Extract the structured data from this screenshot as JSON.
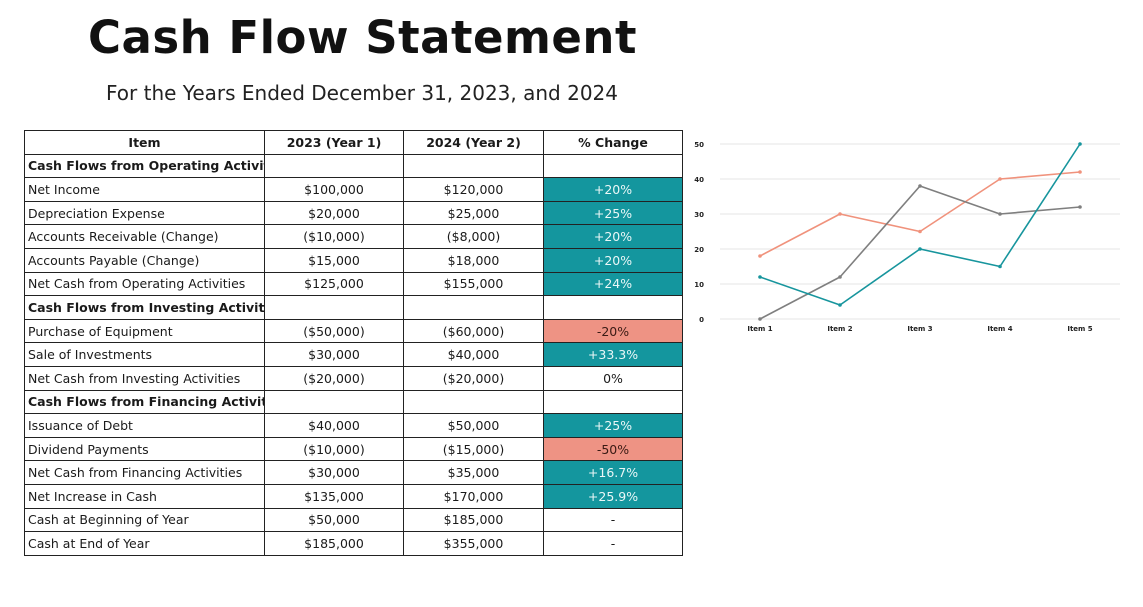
{
  "page": {
    "title": "Cash Flow Statement",
    "subtitle": "For the Years Ended December 31, 2023, and 2024"
  },
  "table": {
    "headers": [
      "Item",
      "2023 (Year 1)",
      "2024 (Year 2)",
      "% Change"
    ],
    "rows": [
      {
        "item": "Cash Flows from Operating Activities",
        "section": true,
        "y1": "",
        "y2": "",
        "change": "",
        "tone": "none"
      },
      {
        "item": "Net Income",
        "section": false,
        "y1": "$100,000",
        "y2": "$120,000",
        "change": "+20%",
        "tone": "pos"
      },
      {
        "item": "Depreciation Expense",
        "section": false,
        "y1": "$20,000",
        "y2": "$25,000",
        "change": "+25%",
        "tone": "pos"
      },
      {
        "item": "Accounts Receivable (Change)",
        "section": false,
        "y1": "($10,000)",
        "y2": "($8,000)",
        "change": "+20%",
        "tone": "pos"
      },
      {
        "item": "Accounts Payable (Change)",
        "section": false,
        "y1": "$15,000",
        "y2": "$18,000",
        "change": "+20%",
        "tone": "pos"
      },
      {
        "item": "Net Cash from Operating Activities",
        "section": false,
        "y1": "$125,000",
        "y2": "$155,000",
        "change": "+24%",
        "tone": "pos"
      },
      {
        "item": "Cash Flows from Investing Activities",
        "section": true,
        "y1": "",
        "y2": "",
        "change": "",
        "tone": "none"
      },
      {
        "item": "Purchase of Equipment",
        "section": false,
        "y1": "($50,000)",
        "y2": "($60,000)",
        "change": "-20%",
        "tone": "neg"
      },
      {
        "item": "Sale of Investments",
        "section": false,
        "y1": "$30,000",
        "y2": "$40,000",
        "change": "+33.3%",
        "tone": "pos"
      },
      {
        "item": "Net Cash from Investing Activities",
        "section": false,
        "y1": "($20,000)",
        "y2": "($20,000)",
        "change": "0%",
        "tone": "neu"
      },
      {
        "item": "Cash Flows from Financing Activities",
        "section": true,
        "y1": "",
        "y2": "",
        "change": "",
        "tone": "none"
      },
      {
        "item": "Issuance of Debt",
        "section": false,
        "y1": "$40,000",
        "y2": "$50,000",
        "change": "+25%",
        "tone": "pos"
      },
      {
        "item": "Dividend Payments",
        "section": false,
        "y1": "($10,000)",
        "y2": "($15,000)",
        "change": "-50%",
        "tone": "neg"
      },
      {
        "item": "Net Cash from Financing Activities",
        "section": false,
        "y1": "$30,000",
        "y2": "$35,000",
        "change": "+16.7%",
        "tone": "pos"
      },
      {
        "item": "Net Increase in Cash",
        "section": false,
        "y1": "$135,000",
        "y2": "$170,000",
        "change": "+25.9%",
        "tone": "pos"
      },
      {
        "item": "Cash at Beginning of Year",
        "section": false,
        "y1": "$50,000",
        "y2": "$185,000",
        "change": "-",
        "tone": "neu"
      },
      {
        "item": "Cash at End of Year",
        "section": false,
        "y1": "$185,000",
        "y2": "$355,000",
        "change": "-",
        "tone": "neu"
      }
    ]
  },
  "colors": {
    "positive": "#14969e",
    "negative": "#ee9384",
    "series": [
      "#f0927c",
      "#7f7f7f",
      "#17959d"
    ],
    "grid": "#e6e6e6"
  },
  "chart_data": {
    "type": "line",
    "categories": [
      "Item 1",
      "Item 2",
      "Item 3",
      "Item 4",
      "Item 5"
    ],
    "series": [
      {
        "values": [
          18,
          30,
          25,
          40,
          42
        ]
      },
      {
        "values": [
          0,
          12,
          38,
          30,
          32
        ]
      },
      {
        "values": [
          12,
          4,
          20,
          15,
          50
        ]
      }
    ],
    "ylim": [
      0,
      50
    ],
    "yticks": [
      0,
      10,
      20,
      30,
      40,
      50
    ],
    "grid": true,
    "legend": "none"
  }
}
